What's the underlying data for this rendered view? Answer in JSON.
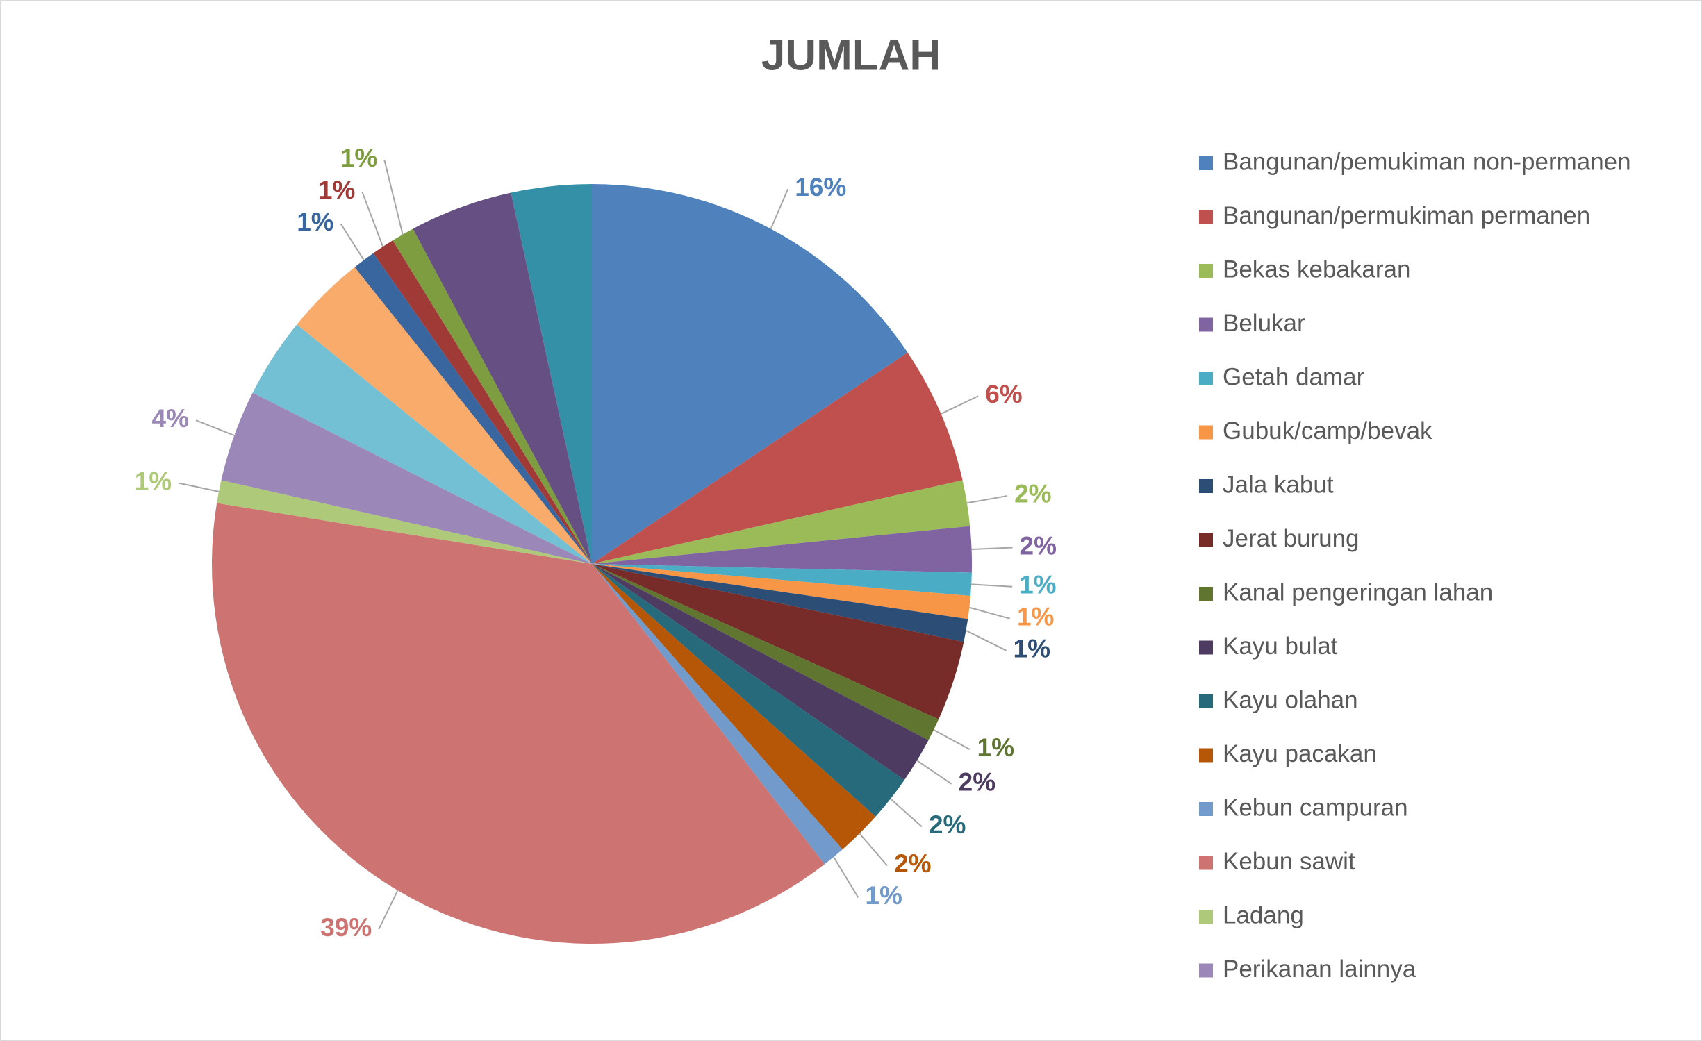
{
  "chart_data": {
    "type": "pie",
    "title": "JUMLAH",
    "categories": [
      "Bangunan/pemukiman non-permanen",
      "Bangunan/permukiman permanen",
      "Bekas kebakaran",
      "Belukar",
      "Getah damar",
      "Gubuk/camp/bevak",
      "Jala kabut",
      "Jerat burung",
      "Kanal pengeringan lahan",
      "Kayu bulat",
      "Kayu olahan",
      "Kayu pacakan",
      "Kebun campuran",
      "Kebun sawit",
      "Ladang",
      "Perikanan lainnya",
      null,
      null,
      null,
      null,
      null,
      null,
      null
    ],
    "values": [
      16,
      6,
      2,
      2,
      1,
      1,
      1,
      3.5,
      1,
      2,
      2,
      2,
      1,
      39,
      1,
      4,
      3.5,
      3.5,
      1,
      1,
      1,
      4.5,
      3.5
    ],
    "value_labels": [
      "16%",
      "6%",
      "2%",
      "2%",
      "1%",
      "1%",
      "1%",
      null,
      "1%",
      "2%",
      "2%",
      "2%",
      "1%",
      "39%",
      "1%",
      "4%",
      null,
      null,
      "1%",
      "1%",
      "1%",
      null,
      null
    ],
    "colors": [
      "#4f81bd",
      "#c0504d",
      "#9bbb59",
      "#8064a2",
      "#4bacc6",
      "#f79646",
      "#2c4d75",
      "#772c2a",
      "#5f7530",
      "#4d3b62",
      "#276a7c",
      "#b65708",
      "#729aca",
      "#cd7371",
      "#afc97a",
      "#9b87b8",
      "#73bfd3",
      "#f9ab6b",
      "#3a66a0",
      "#9f3a37",
      "#7e9c40",
      "#664f83",
      "#3490a6"
    ],
    "legend": "right"
  }
}
